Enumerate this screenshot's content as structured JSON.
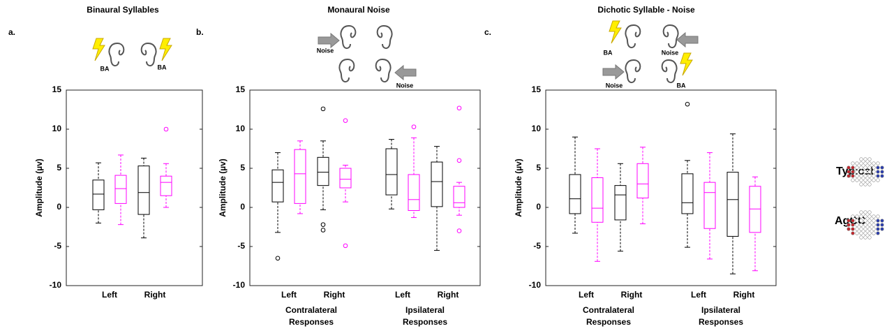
{
  "chart_data": [
    {
      "type": "box",
      "panel_label": "a.",
      "title": "Binaural Syllables",
      "icon_labels": [
        "BA",
        "BA"
      ],
      "ylabel": "Amplitude (µv)",
      "ylim": [
        -10,
        15
      ],
      "yticks": [
        -10,
        -5,
        0,
        5,
        10,
        15
      ],
      "categories": [
        "Left",
        "Right"
      ],
      "category_colors": [
        "#ff0000",
        "#0000cc"
      ],
      "series": [
        {
          "boxes": [
            {
              "whislo": -2,
              "q1": -0.3,
              "med": 1.7,
              "q3": 3.5,
              "whishi": 5.7,
              "fliers": []
            },
            {
              "whislo": -3.9,
              "q1": -0.9,
              "med": 1.9,
              "q3": 5.3,
              "whishi": 6.3,
              "fliers": []
            }
          ]
        },
        {
          "boxes": [
            {
              "whislo": -2.2,
              "q1": 0.5,
              "med": 2.4,
              "q3": 4.1,
              "whishi": 6.7,
              "fliers": []
            },
            {
              "whislo": 0,
              "q1": 1.5,
              "med": 3.2,
              "q3": 4,
              "whishi": 5.6,
              "fliers": [
                10
              ]
            }
          ]
        }
      ]
    },
    {
      "type": "box",
      "panel_label": "b.",
      "title": "Monaural Noise",
      "icon_labels": [
        "Noise",
        "Noise"
      ],
      "ylabel": "Amplitude (µv)",
      "ylim": [
        -10,
        15
      ],
      "yticks": [
        -10,
        -5,
        0,
        5,
        10,
        15
      ],
      "categories": [
        "Left",
        "Right",
        "Left",
        "Right"
      ],
      "category_colors": [
        "#ff0000",
        "#0000cc",
        "#ff0000",
        "#0000cc"
      ],
      "groups": [
        [
          "Contralateral",
          "Responses"
        ],
        [
          "Ipsilateral",
          "Responses"
        ]
      ],
      "series": [
        {
          "boxes": [
            {
              "whislo": -3.2,
              "q1": 0.7,
              "med": 3.2,
              "q3": 4.8,
              "whishi": 7,
              "fliers": [
                -6.5
              ]
            },
            {
              "whislo": -0.3,
              "q1": 2.8,
              "med": 4.5,
              "q3": 6.4,
              "whishi": 8.5,
              "fliers": [
                12.6,
                -2.2,
                -2.9
              ]
            },
            {
              "whislo": -0.2,
              "q1": 1.6,
              "med": 4.2,
              "q3": 7.5,
              "whishi": 8.7,
              "fliers": []
            },
            {
              "whislo": -5.5,
              "q1": 0.1,
              "med": 3.3,
              "q3": 5.8,
              "whishi": 7.8,
              "fliers": []
            }
          ]
        },
        {
          "boxes": [
            {
              "whislo": -0.8,
              "q1": 0.5,
              "med": 4.3,
              "q3": 7.4,
              "whishi": 8.5,
              "fliers": []
            },
            {
              "whislo": 0.7,
              "q1": 2.5,
              "med": 3.6,
              "q3": 5,
              "whishi": 5.4,
              "fliers": [
                11.1,
                -4.9
              ]
            },
            {
              "whislo": -1.3,
              "q1": -0.4,
              "med": 1,
              "q3": 4.2,
              "whishi": 8.9,
              "fliers": [
                10.3
              ]
            },
            {
              "whislo": -1,
              "q1": 0,
              "med": 0.6,
              "q3": 2.7,
              "whishi": 3.2,
              "fliers": [
                12.7,
                6,
                -3
              ]
            }
          ]
        }
      ]
    },
    {
      "type": "box",
      "panel_label": "c.",
      "title": "Dichotic Syllable - Noise",
      "icon_labels": [
        "BA",
        "Noise",
        "Noise",
        "BA"
      ],
      "ylabel": "Amplitude (µv)",
      "ylim": [
        -10,
        15
      ],
      "yticks": [
        -10,
        -5,
        0,
        5,
        10,
        15
      ],
      "categories": [
        "Left",
        "Right",
        "Left",
        "Right"
      ],
      "category_colors": [
        "#ff0000",
        "#0000cc",
        "#ff0000",
        "#0000cc"
      ],
      "groups": [
        [
          "Contralateral",
          "Responses"
        ],
        [
          "Ipsilateral",
          "Responses"
        ]
      ],
      "series": [
        {
          "boxes": [
            {
              "whislo": -3.3,
              "q1": -0.8,
              "med": 1.1,
              "q3": 4.2,
              "whishi": 9,
              "fliers": []
            },
            {
              "whislo": -5.6,
              "q1": -1.6,
              "med": 1.6,
              "q3": 2.8,
              "whishi": 5.6,
              "fliers": []
            },
            {
              "whislo": -5.1,
              "q1": -0.8,
              "med": 0.6,
              "q3": 4.3,
              "whishi": 6,
              "fliers": [
                13.2
              ]
            },
            {
              "whislo": -8.5,
              "q1": -3.7,
              "med": 1,
              "q3": 4.5,
              "whishi": 9.4,
              "fliers": []
            }
          ]
        },
        {
          "boxes": [
            {
              "whislo": -6.9,
              "q1": -1.9,
              "med": -0.1,
              "q3": 3.8,
              "whishi": 7.5,
              "fliers": []
            },
            {
              "whislo": -2.1,
              "q1": 1.2,
              "med": 3,
              "q3": 5.6,
              "whishi": 7.7,
              "fliers": []
            },
            {
              "whislo": -6.6,
              "q1": -2.7,
              "med": 1.9,
              "q3": 3.2,
              "whishi": 7,
              "fliers": []
            },
            {
              "whislo": -8.1,
              "q1": -3.2,
              "med": -0.2,
              "q3": 2.7,
              "whishi": 3.9,
              "fliers": []
            }
          ]
        }
      ]
    }
  ],
  "legend": [
    {
      "name": "Typical",
      "color": "#000000"
    },
    {
      "name": "AgCC",
      "color": "#ff00ff"
    }
  ]
}
